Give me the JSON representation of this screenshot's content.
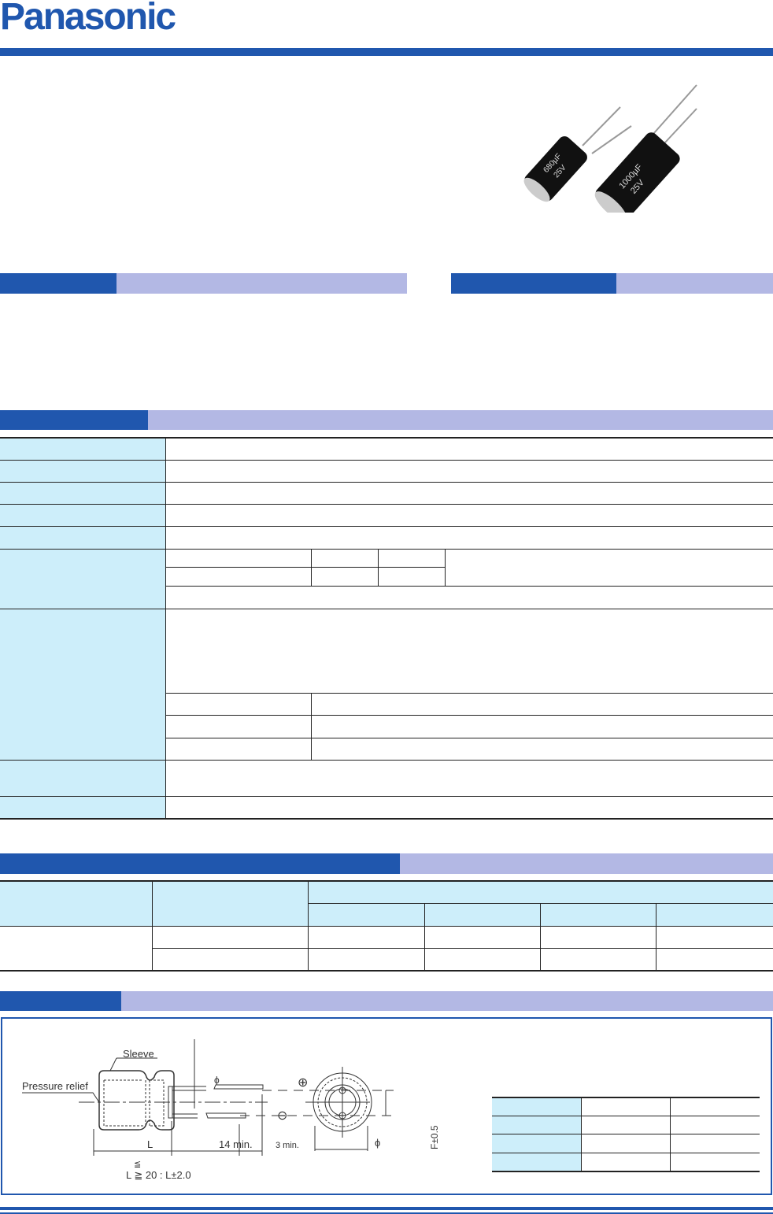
{
  "brand": {
    "logo_text": "Panasonic",
    "color": "#2057ae"
  },
  "colors": {
    "section_blue": "#2057ae",
    "section_lavender": "#b3b8e4",
    "label_cyan": "#cdeefa"
  },
  "product_photo": {
    "capacitor_1_marking": [
      "680µF",
      "25V"
    ],
    "capacitor_2_marking": [
      "1000µF",
      "25V"
    ]
  },
  "drawing": {
    "sleeve_label": "Sleeve",
    "pressure_relief_label": "Pressure relief",
    "length_label": "L",
    "lead_length_label": "14 min.",
    "lead_end_label": "3 min.",
    "diameter_label": "ϕ",
    "pitch_label": "F±0.5",
    "tolerance_note_1": "≦",
    "tolerance_note_2": "L ≧ 20 : L±2.0",
    "plus_symbol": "⊕",
    "minus_symbol": "⊖"
  }
}
